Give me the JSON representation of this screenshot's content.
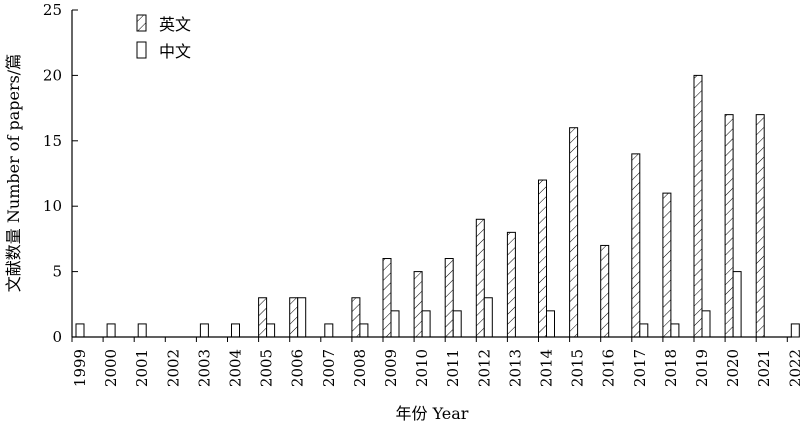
{
  "chart_data": {
    "type": "bar",
    "xlabel": "年份 Year",
    "ylabel": "文献数量 Number of papers/篇",
    "ylim": [
      0,
      25
    ],
    "yticks": [
      0,
      5,
      10,
      15,
      20,
      25
    ],
    "grid": false,
    "legend_position": "top-left",
    "categories": [
      "1999",
      "2000",
      "2001",
      "2002",
      "2003",
      "2004",
      "2005",
      "2006",
      "2007",
      "2008",
      "2009",
      "2010",
      "2011",
      "2012",
      "2013",
      "2014",
      "2015",
      "2016",
      "2017",
      "2018",
      "2019",
      "2020",
      "2021",
      "2022"
    ],
    "series": [
      {
        "name": "英文",
        "pattern": "hatched",
        "values": [
          0,
          0,
          0,
          0,
          0,
          0,
          3,
          3,
          0,
          3,
          6,
          5,
          6,
          9,
          8,
          12,
          16,
          7,
          14,
          11,
          20,
          17,
          17,
          0
        ]
      },
      {
        "name": "中文",
        "pattern": "plain",
        "values": [
          1,
          1,
          1,
          0,
          1,
          1,
          1,
          3,
          1,
          1,
          2,
          2,
          2,
          3,
          0,
          2,
          0,
          0,
          1,
          1,
          2,
          5,
          0,
          1
        ]
      }
    ]
  }
}
